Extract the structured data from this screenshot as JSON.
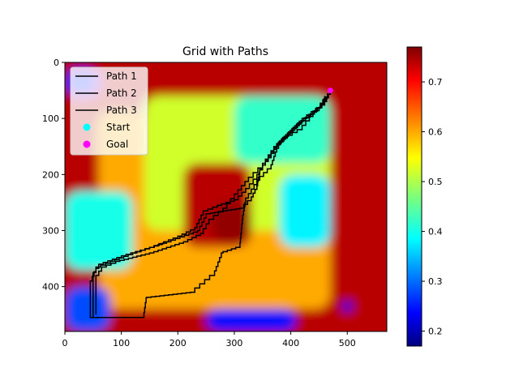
{
  "chart_data": [
    {
      "type": "heatmap",
      "title": "Grid with Paths",
      "xlabel": "",
      "ylabel": "",
      "xlim": [
        0,
        570
      ],
      "ylim": [
        480,
        0
      ],
      "x_ticks": [
        0,
        100,
        200,
        300,
        400,
        500
      ],
      "y_ticks": [
        0,
        100,
        200,
        300,
        400
      ],
      "colormap": "jet",
      "value_range": [
        0.17,
        0.77
      ],
      "colorbar_ticks": [
        0.2,
        0.3,
        0.4,
        0.5,
        0.6,
        0.7
      ],
      "regions": [
        {
          "value": 0.74,
          "x": [
            0,
            570
          ],
          "y": [
            0,
            480
          ]
        },
        {
          "value": 0.6,
          "x": [
            60,
            470
          ],
          "y": [
            90,
            440
          ]
        },
        {
          "value": 0.52,
          "x": [
            140,
            470
          ],
          "y": [
            60,
            300
          ]
        },
        {
          "value": 0.42,
          "x": [
            300,
            470
          ],
          "y": [
            60,
            180
          ]
        },
        {
          "value": 0.38,
          "x": [
            380,
            470
          ],
          "y": [
            200,
            330
          ]
        },
        {
          "value": 0.4,
          "x": [
            0,
            120
          ],
          "y": [
            230,
            370
          ]
        },
        {
          "value": 0.74,
          "x": [
            210,
            330
          ],
          "y": [
            180,
            330
          ]
        },
        {
          "value": 0.76,
          "x": [
            260,
            330
          ],
          "y": [
            250,
            320
          ]
        },
        {
          "value": 0.28,
          "x": [
            0,
            80
          ],
          "y": [
            400,
            480
          ]
        },
        {
          "value": 0.24,
          "x": [
            250,
            410
          ],
          "y": [
            440,
            480
          ]
        },
        {
          "value": 0.26,
          "x": [
            0,
            60
          ],
          "y": [
            10,
            60
          ]
        },
        {
          "value": 0.22,
          "x": [
            490,
            510
          ],
          "y": [
            425,
            445
          ]
        }
      ],
      "legend": {
        "placement": "upper-left",
        "entries": [
          "Path 1",
          "Path 2",
          "Path 3",
          "Start",
          "Goal"
        ]
      },
      "markers": [
        {
          "name": "Start",
          "color": "#00ffff"
        },
        {
          "name": "Goal",
          "color": "#ff00ff"
        }
      ],
      "series": [
        {
          "name": "Path 1",
          "color": "#000000",
          "points": [
            [
              470,
              50
            ],
            [
              460,
              70
            ],
            [
              420,
              100
            ],
            [
              380,
              140
            ],
            [
              360,
              170
            ],
            [
              345,
              190
            ],
            [
              340,
              220
            ],
            [
              330,
              240
            ],
            [
              310,
              260
            ],
            [
              250,
              270
            ],
            [
              235,
              300
            ],
            [
              180,
              320
            ],
            [
              120,
              340
            ],
            [
              80,
              355
            ],
            [
              55,
              365
            ],
            [
              45,
              390
            ],
            [
              45,
              455
            ],
            [
              140,
              455
            ],
            [
              145,
              420
            ],
            [
              230,
              410
            ],
            [
              265,
              380
            ],
            [
              280,
              340
            ],
            [
              310,
              330
            ],
            [
              315,
              280
            ],
            [
              320,
              250
            ],
            [
              345,
              210
            ],
            [
              365,
              190
            ],
            [
              375,
              160
            ],
            [
              385,
              140
            ],
            [
              420,
              120
            ],
            [
              465,
              65
            ]
          ]
        },
        {
          "name": "Path 2",
          "color": "#000000",
          "points": [
            [
              465,
              55
            ],
            [
              455,
              75
            ],
            [
              415,
              105
            ],
            [
              375,
              145
            ],
            [
              355,
              175
            ],
            [
              340,
              200
            ],
            [
              320,
              225
            ],
            [
              300,
              245
            ],
            [
              270,
              255
            ],
            [
              245,
              265
            ],
            [
              230,
              295
            ],
            [
              200,
              310
            ],
            [
              150,
              330
            ],
            [
              100,
              345
            ],
            [
              60,
              360
            ],
            [
              50,
              375
            ],
            [
              50,
              455
            ]
          ]
        },
        {
          "name": "Path 3",
          "color": "#000000",
          "points": [
            [
              460,
              60
            ],
            [
              450,
              80
            ],
            [
              410,
              110
            ],
            [
              370,
              150
            ],
            [
              350,
              180
            ],
            [
              325,
              205
            ],
            [
              300,
              235
            ],
            [
              280,
              260
            ],
            [
              255,
              280
            ],
            [
              240,
              305
            ],
            [
              210,
              320
            ],
            [
              150,
              340
            ],
            [
              90,
              355
            ],
            [
              65,
              365
            ],
            [
              55,
              380
            ],
            [
              55,
              450
            ]
          ]
        }
      ]
    }
  ]
}
